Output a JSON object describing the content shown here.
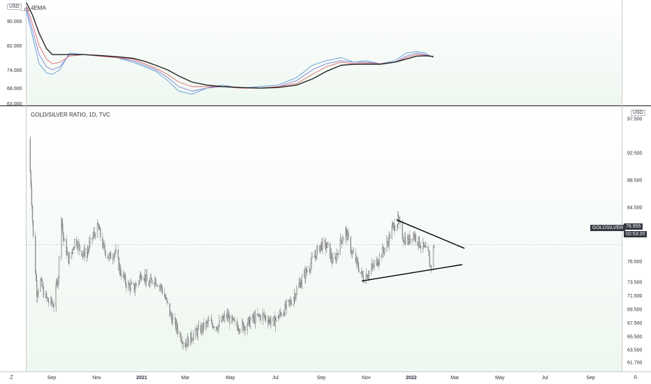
{
  "header": {
    "indicator_title": "4EMA",
    "main_title": "GOLD/SILVER RATIO, 1D, TVC",
    "currency_top": "USD",
    "currency_main": "USD"
  },
  "price_tags": {
    "symbol": "GOLDSILVER",
    "last_price": "78.955",
    "countdown": "02:53:20"
  },
  "corner_buttons": {
    "left": "Z",
    "right": "A"
  },
  "colors": {
    "bull": "#5a5a5a",
    "bear": "#8a8a8a",
    "ema_fast": "#5b9bd5",
    "ema_mid": "#7f7fd8",
    "ema_slow": "#e06666",
    "ema_longest": "#222222",
    "trendline": "#000000",
    "tag_bg": "#333740",
    "pane_bg_top": "#ffffff",
    "pane_bg_bottom": "#eef7f0"
  },
  "chart_data": [
    {
      "type": "line",
      "title": "4EMA",
      "ylim": [
        63,
        96
      ],
      "y_ticks": [
        "63.000",
        "68.000",
        "74.000",
        "82.000",
        "90.000"
      ],
      "y_ticks_partial": [
        "...00"
      ],
      "x_range": [
        "2020-07-29",
        "2022-10-12"
      ],
      "series": [
        {
          "color": "#5b9bd5",
          "x": [
            "2020-07-29",
            "2020-08-06",
            "2020-08-15",
            "2020-08-25",
            "2020-09-02",
            "2020-09-12",
            "2020-09-25",
            "2020-10-15",
            "2020-11-05",
            "2020-11-28",
            "2020-12-20",
            "2021-01-05",
            "2021-01-20",
            "2021-02-05",
            "2021-02-20",
            "2021-03-10",
            "2021-03-30",
            "2021-04-20",
            "2021-05-15",
            "2021-06-10",
            "2021-07-05",
            "2021-07-30",
            "2021-08-20",
            "2021-09-08",
            "2021-09-28",
            "2021-10-15",
            "2021-11-01",
            "2021-11-20",
            "2021-12-10",
            "2021-12-25",
            "2022-01-08",
            "2022-01-20",
            "2022-01-31"
          ],
          "y": [
            93.0,
            85.0,
            76.0,
            73.0,
            72.5,
            74.0,
            79.5,
            79.0,
            78.5,
            78.0,
            76.5,
            75.0,
            73.5,
            70.5,
            67.0,
            66.0,
            68.0,
            69.0,
            68.0,
            68.5,
            69.0,
            71.5,
            75.5,
            77.0,
            78.0,
            76.5,
            77.0,
            76.0,
            77.0,
            79.5,
            80.0,
            79.5,
            78.0
          ]
        },
        {
          "color": "#7f7fd8",
          "x": [
            "2020-07-29",
            "2020-08-06",
            "2020-08-15",
            "2020-08-25",
            "2020-09-02",
            "2020-09-12",
            "2020-09-25",
            "2020-10-15",
            "2020-11-05",
            "2020-11-28",
            "2020-12-20",
            "2021-01-05",
            "2021-01-20",
            "2021-02-05",
            "2021-02-20",
            "2021-03-10",
            "2021-03-30",
            "2021-04-20",
            "2021-05-15",
            "2021-06-10",
            "2021-07-05",
            "2021-07-30",
            "2021-08-20",
            "2021-09-08",
            "2021-09-28",
            "2021-10-15",
            "2021-11-01",
            "2021-11-20",
            "2021-12-10",
            "2021-12-25",
            "2022-01-08",
            "2022-01-20",
            "2022-01-31"
          ],
          "y": [
            94.0,
            87.0,
            79.0,
            75.0,
            74.0,
            75.0,
            79.0,
            79.0,
            78.5,
            78.0,
            77.0,
            75.5,
            74.0,
            71.5,
            68.5,
            67.0,
            68.0,
            68.5,
            68.0,
            68.0,
            68.5,
            70.5,
            74.0,
            76.0,
            77.0,
            76.5,
            76.5,
            76.0,
            76.5,
            78.5,
            79.5,
            79.0,
            78.2
          ]
        },
        {
          "color": "#e06666",
          "x": [
            "2020-07-29",
            "2020-08-06",
            "2020-08-15",
            "2020-08-25",
            "2020-09-02",
            "2020-09-12",
            "2020-09-25",
            "2020-10-15",
            "2020-11-05",
            "2020-11-28",
            "2020-12-20",
            "2021-01-05",
            "2021-01-20",
            "2021-02-05",
            "2021-02-20",
            "2021-03-10",
            "2021-03-30",
            "2021-04-20",
            "2021-05-15",
            "2021-06-10",
            "2021-07-05",
            "2021-07-30",
            "2021-08-20",
            "2021-09-08",
            "2021-09-28",
            "2021-10-15",
            "2021-11-01",
            "2021-11-20",
            "2021-12-10",
            "2021-12-25",
            "2022-01-08",
            "2022-01-20",
            "2022-01-31"
          ],
          "y": [
            95.0,
            89.0,
            82.0,
            77.5,
            76.0,
            76.5,
            78.5,
            79.0,
            78.5,
            78.0,
            77.5,
            76.0,
            74.5,
            72.5,
            70.0,
            68.5,
            68.5,
            68.5,
            68.0,
            68.0,
            68.5,
            69.5,
            72.5,
            75.0,
            76.5,
            76.0,
            76.2,
            76.0,
            76.5,
            78.0,
            79.0,
            78.8,
            78.3
          ]
        },
        {
          "color": "#222222",
          "x": [
            "2020-07-29",
            "2020-08-06",
            "2020-08-15",
            "2020-08-25",
            "2020-09-02",
            "2020-09-12",
            "2020-09-25",
            "2020-10-15",
            "2020-11-05",
            "2020-11-28",
            "2020-12-20",
            "2021-01-05",
            "2021-01-20",
            "2021-02-05",
            "2021-02-20",
            "2021-03-10",
            "2021-03-30",
            "2021-04-20",
            "2021-05-15",
            "2021-06-10",
            "2021-07-05",
            "2021-07-30",
            "2021-08-20",
            "2021-09-08",
            "2021-09-28",
            "2021-10-15",
            "2021-11-01",
            "2021-11-20",
            "2021-12-10",
            "2021-12-25",
            "2022-01-08",
            "2022-01-20",
            "2022-01-31"
          ],
          "y": [
            96.0,
            92.0,
            86.0,
            81.0,
            79.0,
            79.0,
            79.0,
            79.0,
            78.7,
            78.3,
            77.8,
            76.8,
            75.5,
            74.0,
            72.0,
            70.0,
            69.0,
            68.5,
            68.2,
            68.0,
            68.2,
            69.0,
            71.0,
            73.5,
            75.5,
            75.8,
            75.8,
            75.8,
            76.5,
            77.5,
            78.5,
            78.6,
            78.4
          ]
        }
      ]
    },
    {
      "type": "candlestick",
      "title": "GOLD/SILVER RATIO, 1D, TVC",
      "ylim": [
        60.7,
        98.5
      ],
      "y_ticks": [
        "61.700",
        "63.500",
        "65.500",
        "67.500",
        "69.500",
        "71.500",
        "73.500",
        "76.500",
        "80.500",
        "84.500",
        "88.500",
        "92.500",
        "97.500"
      ],
      "x_ticks": [
        "Sep",
        "Nov",
        "2021",
        "Mar",
        "May",
        "Jul",
        "Sep",
        "Nov",
        "2022",
        "Mar",
        "May",
        "Jul",
        "Sep"
      ],
      "x_range": [
        "2020-07-29",
        "2022-10-12"
      ],
      "last_price": 78.955,
      "path": {
        "x": [
          "2020-07-31",
          "2020-08-04",
          "2020-08-07",
          "2020-08-12",
          "2020-08-17",
          "2020-08-22",
          "2020-08-28",
          "2020-09-04",
          "2020-09-10",
          "2020-09-14",
          "2020-09-17",
          "2020-09-21",
          "2020-09-25",
          "2020-10-03",
          "2020-10-10",
          "2020-10-18",
          "2020-10-26",
          "2020-11-03",
          "2020-11-10",
          "2020-11-18",
          "2020-11-26",
          "2020-12-03",
          "2020-12-12",
          "2020-12-22",
          "2021-01-02",
          "2021-01-10",
          "2021-01-18",
          "2021-01-28",
          "2021-02-02",
          "2021-02-09",
          "2021-02-16",
          "2021-02-23",
          "2021-03-01",
          "2021-03-10",
          "2021-03-22",
          "2021-04-02",
          "2021-04-14",
          "2021-04-26",
          "2021-05-08",
          "2021-05-20",
          "2021-06-01",
          "2021-06-14",
          "2021-06-28",
          "2021-07-10",
          "2021-07-22",
          "2021-08-02",
          "2021-08-12",
          "2021-08-22",
          "2021-09-01",
          "2021-09-10",
          "2021-09-18",
          "2021-09-26",
          "2021-10-04",
          "2021-10-12",
          "2021-10-20",
          "2021-10-28",
          "2021-11-05",
          "2021-11-13",
          "2021-11-21",
          "2021-11-29",
          "2021-12-07",
          "2021-12-14",
          "2021-12-21",
          "2021-12-28",
          "2022-01-04",
          "2022-01-10",
          "2022-01-17",
          "2022-01-24",
          "2022-01-27",
          "2022-02-01"
        ],
        "y": [
          94.5,
          88.0,
          80.0,
          72.0,
          73.5,
          71.5,
          70.5,
          70.2,
          74.5,
          83.5,
          79.5,
          78.0,
          76.5,
          80.0,
          78.0,
          77.5,
          80.0,
          81.5,
          78.5,
          77.0,
          78.0,
          75.0,
          73.0,
          72.5,
          75.0,
          73.0,
          74.0,
          72.5,
          71.0,
          68.5,
          67.0,
          65.5,
          64.3,
          65.5,
          66.5,
          67.5,
          67.0,
          68.5,
          67.0,
          67.0,
          68.0,
          68.5,
          67.5,
          69.0,
          70.5,
          73.0,
          75.0,
          77.0,
          79.0,
          78.5,
          76.0,
          79.0,
          81.0,
          78.0,
          76.0,
          74.0,
          75.0,
          76.0,
          77.5,
          79.0,
          81.5,
          82.5,
          80.0,
          79.5,
          80.5,
          79.5,
          78.5,
          77.5,
          75.5,
          78.955
        ]
      },
      "trendlines": [
        {
          "x": [
            "2021-12-12",
            "2022-03-14"
          ],
          "y": [
            82.6,
            78.4
          ]
        },
        {
          "x": [
            "2021-10-26",
            "2022-03-11"
          ],
          "y": [
            73.6,
            76.0
          ]
        }
      ]
    }
  ]
}
